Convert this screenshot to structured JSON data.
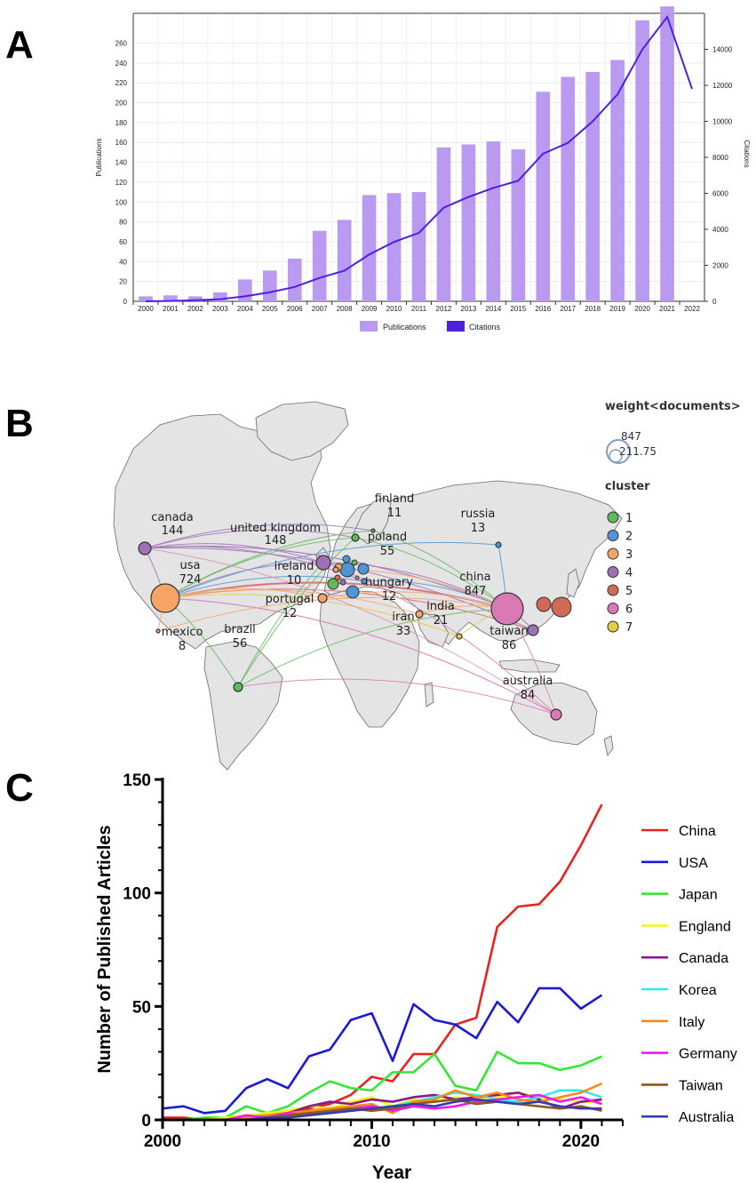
{
  "panels": {
    "a": "A",
    "b": "B",
    "c": "C"
  },
  "colors": {
    "bar": "#b99af0",
    "citation_line": "#4f1fe0",
    "land": "#e4e4e4",
    "cluster": [
      "#62b85a",
      "#4f94d4",
      "#f5a466",
      "#a070b6",
      "#d06a56",
      "#d97ab4",
      "#e3cc46"
    ]
  },
  "chart_data": [
    {
      "type": "bar",
      "title": "",
      "xlabel": "",
      "ylabel": "Publications",
      "y2label": "Citations",
      "ylim": [
        0,
        290
      ],
      "y2lim": [
        0,
        16000
      ],
      "yticks": [
        0,
        20,
        40,
        60,
        80,
        100,
        120,
        140,
        160,
        180,
        200,
        220,
        240,
        260
      ],
      "y2ticks": [
        0,
        2000,
        4000,
        6000,
        8000,
        10000,
        12000,
        14000
      ],
      "categories": [
        "2000",
        "2001",
        "2002",
        "2003",
        "2004",
        "2005",
        "2006",
        "2007",
        "2008",
        "2009",
        "2010",
        "2011",
        "2012",
        "2013",
        "2014",
        "2015",
        "2016",
        "2017",
        "2018",
        "2019",
        "2020",
        "2021",
        "2022"
      ],
      "series": [
        {
          "name": "Publications",
          "values": [
            5,
            6,
            5,
            9,
            22,
            31,
            43,
            71,
            82,
            107,
            109,
            110,
            155,
            158,
            161,
            153,
            211,
            226,
            231,
            243,
            283,
            297,
            null
          ]
        },
        {
          "name": "Citations",
          "values": [
            0,
            20,
            60,
            120,
            280,
            500,
            800,
            1300,
            1700,
            2600,
            3300,
            3800,
            5200,
            5800,
            6300,
            6700,
            8200,
            8800,
            10000,
            11500,
            14000,
            15800,
            11800
          ]
        }
      ],
      "legend": [
        "Publications",
        "Citations"
      ]
    },
    {
      "type": "network-map",
      "legend_title": "weight<documents>",
      "size_legend": [
        "847",
        "211.75"
      ],
      "cluster_title": "cluster",
      "clusters": [
        "1",
        "2",
        "3",
        "4",
        "5",
        "6",
        "7"
      ],
      "nodes": [
        {
          "id": "canada",
          "label": "canada",
          "value": "144",
          "cluster": 4
        },
        {
          "id": "united-kingdom",
          "label": "united kingdom",
          "value": "148",
          "cluster": 4
        },
        {
          "id": "finland",
          "label": "finland",
          "value": "11",
          "cluster": 1
        },
        {
          "id": "russia",
          "label": "russia",
          "value": "13",
          "cluster": 2
        },
        {
          "id": "poland",
          "label": "poland",
          "value": "55",
          "cluster": 1
        },
        {
          "id": "usa",
          "label": "usa",
          "value": "724",
          "cluster": 3
        },
        {
          "id": "ireland",
          "label": "ireland",
          "value": "10",
          "cluster": 3
        },
        {
          "id": "hungary",
          "label": "hungary",
          "value": "12",
          "cluster": 2
        },
        {
          "id": "china",
          "label": "china",
          "value": "847",
          "cluster": 6
        },
        {
          "id": "portugal",
          "label": "portugal",
          "value": "12",
          "cluster": 3
        },
        {
          "id": "india",
          "label": "india",
          "value": "21",
          "cluster": 7
        },
        {
          "id": "iran",
          "label": "iran",
          "value": "33",
          "cluster": 3
        },
        {
          "id": "mexico",
          "label": "mexico",
          "value": "8",
          "cluster": 3
        },
        {
          "id": "taiwan",
          "label": "taiwan",
          "value": "86",
          "cluster": 4
        },
        {
          "id": "brazil",
          "label": "brazil",
          "value": "56",
          "cluster": 1
        },
        {
          "id": "australia",
          "label": "australia",
          "value": "84",
          "cluster": 6
        }
      ]
    },
    {
      "type": "line",
      "title": "",
      "xlabel": "Year",
      "ylabel": "Number of Published Articles",
      "xlim": [
        2000,
        2022
      ],
      "ylim": [
        0,
        150
      ],
      "xticks": [
        2000,
        2010,
        2020
      ],
      "yticks": [
        0,
        50,
        100,
        150
      ],
      "x": [
        2000,
        2001,
        2002,
        2003,
        2004,
        2005,
        2006,
        2007,
        2008,
        2009,
        2010,
        2011,
        2012,
        2013,
        2014,
        2015,
        2016,
        2017,
        2018,
        2019,
        2020,
        2021
      ],
      "series": [
        {
          "name": "China",
          "color": "#e8231e",
          "values": [
            1,
            1,
            0,
            0,
            1,
            2,
            3,
            5,
            7,
            11,
            19,
            17,
            29,
            29,
            42,
            45,
            85,
            94,
            95,
            105,
            121,
            139
          ]
        },
        {
          "name": "USA",
          "color": "#1a1ad6",
          "values": [
            5,
            6,
            3,
            4,
            14,
            18,
            14,
            28,
            31,
            44,
            47,
            26,
            51,
            44,
            42,
            36,
            52,
            43,
            58,
            58,
            49,
            55
          ]
        },
        {
          "name": "Japan",
          "color": "#33e833",
          "values": [
            0,
            0,
            1,
            1,
            6,
            3,
            6,
            12,
            17,
            14,
            13,
            21,
            21,
            29,
            15,
            13,
            30,
            25,
            25,
            22,
            24,
            28
          ]
        },
        {
          "name": "England",
          "color": "#f5f51a",
          "values": [
            0,
            0,
            0,
            1,
            2,
            3,
            4,
            6,
            5,
            8,
            10,
            6,
            9,
            8,
            10,
            9,
            10,
            12,
            10,
            9,
            8,
            8
          ]
        },
        {
          "name": "Canada",
          "color": "#8a1a8a",
          "values": [
            0,
            0,
            0,
            0,
            1,
            2,
            3,
            6,
            8,
            7,
            9,
            8,
            10,
            11,
            9,
            10,
            11,
            12,
            9,
            5,
            8,
            9
          ]
        },
        {
          "name": "Korea",
          "color": "#33e8f0",
          "values": [
            0,
            0,
            0,
            0,
            1,
            1,
            2,
            3,
            3,
            4,
            5,
            6,
            8,
            10,
            12,
            11,
            9,
            8,
            10,
            13,
            13,
            10
          ]
        },
        {
          "name": "Italy",
          "color": "#f58a1a",
          "values": [
            0,
            0,
            0,
            0,
            1,
            2,
            3,
            4,
            5,
            6,
            7,
            3,
            8,
            9,
            13,
            10,
            12,
            9,
            8,
            10,
            12,
            16
          ]
        },
        {
          "name": "Germany",
          "color": "#f01af0",
          "values": [
            0,
            0,
            0,
            0,
            2,
            1,
            3,
            2,
            4,
            5,
            6,
            4,
            6,
            5,
            6,
            8,
            9,
            10,
            11,
            8,
            10,
            7
          ]
        },
        {
          "name": "Taiwan",
          "color": "#8a5a1a",
          "values": [
            0,
            0,
            0,
            0,
            0,
            1,
            2,
            3,
            4,
            5,
            4,
            5,
            7,
            8,
            9,
            7,
            8,
            7,
            6,
            5,
            6,
            4
          ]
        },
        {
          "name": "Australia",
          "color": "#3a3ab0",
          "values": [
            0,
            0,
            0,
            0,
            0,
            1,
            1,
            2,
            3,
            4,
            5,
            6,
            7,
            6,
            8,
            9,
            8,
            7,
            8,
            6,
            5,
            5
          ]
        }
      ]
    }
  ]
}
